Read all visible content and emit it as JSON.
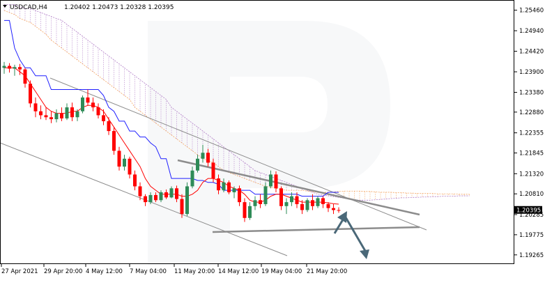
{
  "header": {
    "symbol": "USDCAD,H4",
    "ohlc": "1.20402 1.20473 1.20328 1.20395"
  },
  "colors": {
    "bull": "#2e8b57",
    "bear": "#ff0000",
    "kijun": "#1f1fff",
    "tenkan": "#ff0000",
    "cloud_bear": "#b07cc6",
    "cloud_bull": "#f4a460",
    "trendline": "#8c8c8c",
    "arrow": "#4a6878",
    "price_tag": "#000000"
  },
  "chart_data": {
    "type": "candlestick",
    "title": "",
    "xlabel": "",
    "ylabel": "",
    "ylim": [
      1.1905,
      1.257
    ],
    "grid": false,
    "y_ticks": [
      "1.25460",
      "1.24940",
      "1.24420",
      "1.23900",
      "1.23380",
      "1.22880",
      "1.22355",
      "1.21845",
      "1.21320",
      "1.20810",
      "1.20285",
      "1.19775",
      "1.19265"
    ],
    "x_ticks": [
      "27 Apr 2021",
      "29 Apr 20:00",
      "4 May 12:00",
      "7 May 04:00",
      "11 May 20:00",
      "14 May 12:00",
      "19 May 04:00",
      "21 May 20:00"
    ],
    "current_price": "1.20395",
    "candles": [
      [
        1.24,
        1.2415,
        1.2385,
        1.2405
      ],
      [
        1.2405,
        1.2412,
        1.2388,
        1.2398
      ],
      [
        1.2398,
        1.2408,
        1.238,
        1.2402
      ],
      [
        1.2402,
        1.241,
        1.2382,
        1.2396
      ],
      [
        1.2396,
        1.24,
        1.235,
        1.236
      ],
      [
        1.236,
        1.2368,
        1.23,
        1.231
      ],
      [
        1.231,
        1.2325,
        1.2275,
        1.229
      ],
      [
        1.229,
        1.2305,
        1.227,
        1.228
      ],
      [
        1.228,
        1.23,
        1.2268,
        1.2275
      ],
      [
        1.2275,
        1.229,
        1.226,
        1.227
      ],
      [
        1.227,
        1.2295,
        1.2262,
        1.2285
      ],
      [
        1.2285,
        1.23,
        1.2265,
        1.2272
      ],
      [
        1.2272,
        1.231,
        1.2268,
        1.23
      ],
      [
        1.23,
        1.2312,
        1.2265,
        1.2275
      ],
      [
        1.2275,
        1.2295,
        1.2265,
        1.229
      ],
      [
        1.229,
        1.233,
        1.2285,
        1.2325
      ],
      [
        1.2325,
        1.2345,
        1.2305,
        1.2312
      ],
      [
        1.2312,
        1.2325,
        1.229,
        1.23
      ],
      [
        1.23,
        1.231,
        1.2272,
        1.228
      ],
      [
        1.228,
        1.2295,
        1.2255,
        1.2265
      ],
      [
        1.2265,
        1.2275,
        1.223,
        1.224
      ],
      [
        1.224,
        1.225,
        1.218,
        1.219
      ],
      [
        1.219,
        1.22,
        1.214,
        1.215
      ],
      [
        1.215,
        1.218,
        1.214,
        1.217
      ],
      [
        1.217,
        1.2175,
        1.212,
        1.213
      ],
      [
        1.213,
        1.214,
        1.209,
        1.21
      ],
      [
        1.21,
        1.211,
        1.2065,
        1.2075
      ],
      [
        1.2075,
        1.208,
        1.205,
        1.206
      ],
      [
        1.206,
        1.2085,
        1.2055,
        1.2078
      ],
      [
        1.2078,
        1.2085,
        1.206,
        1.2065
      ],
      [
        1.2065,
        1.209,
        1.206,
        1.2085
      ],
      [
        1.2085,
        1.2092,
        1.2068,
        1.2072
      ],
      [
        1.2072,
        1.21,
        1.207,
        1.2095
      ],
      [
        1.2095,
        1.2102,
        1.206,
        1.2068
      ],
      [
        1.2068,
        1.208,
        1.202,
        1.203
      ],
      [
        1.203,
        1.211,
        1.2025,
        1.21
      ],
      [
        1.21,
        1.215,
        1.2095,
        1.214
      ],
      [
        1.214,
        1.218,
        1.2135,
        1.217
      ],
      [
        1.217,
        1.2205,
        1.216,
        1.2185
      ],
      [
        1.2185,
        1.2195,
        1.215,
        1.216
      ],
      [
        1.216,
        1.217,
        1.211,
        1.212
      ],
      [
        1.212,
        1.213,
        1.208,
        1.209
      ],
      [
        1.209,
        1.212,
        1.2085,
        1.211
      ],
      [
        1.211,
        1.2115,
        1.208,
        1.2085
      ],
      [
        1.2085,
        1.21,
        1.207,
        1.2095
      ],
      [
        1.2095,
        1.2102,
        1.205,
        1.206
      ],
      [
        1.206,
        1.207,
        1.201,
        1.202
      ],
      [
        1.202,
        1.206,
        1.2015,
        1.205
      ],
      [
        1.205,
        1.2075,
        1.204,
        1.2065
      ],
      [
        1.2065,
        1.208,
        1.2045,
        1.2055
      ],
      [
        1.2055,
        1.211,
        1.205,
        1.21
      ],
      [
        1.21,
        1.214,
        1.2095,
        1.213
      ],
      [
        1.213,
        1.2138,
        1.2085,
        1.2095
      ],
      [
        1.2095,
        1.21,
        1.204,
        1.205
      ],
      [
        1.205,
        1.207,
        1.203,
        1.206
      ],
      [
        1.206,
        1.2085,
        1.205,
        1.2075
      ],
      [
        1.2075,
        1.2085,
        1.2045,
        1.2055
      ],
      [
        1.2055,
        1.2065,
        1.203,
        1.204
      ],
      [
        1.204,
        1.207,
        1.2035,
        1.2065
      ],
      [
        1.2065,
        1.208,
        1.204,
        1.205
      ],
      [
        1.205,
        1.2075,
        1.2045,
        1.207
      ],
      [
        1.207,
        1.2075,
        1.2045,
        1.2055
      ],
      [
        1.2055,
        1.206,
        1.2035,
        1.2045
      ],
      [
        1.2045,
        1.2055,
        1.203,
        1.204
      ],
      [
        1.204,
        1.2047,
        1.2033,
        1.20395
      ]
    ],
    "kijun": [
      1.252,
      1.252,
      1.245,
      1.242,
      1.24,
      1.24,
      1.238,
      1.238,
      1.238,
      1.2345,
      1.2345,
      1.2345,
      1.2345,
      1.2345,
      1.2345,
      1.2345,
      1.2345,
      1.2345,
      1.2345,
      1.233,
      1.23,
      1.229,
      1.2265,
      1.2265,
      1.224,
      1.224,
      1.2225,
      1.2225,
      1.221,
      1.22,
      1.217,
      1.217,
      1.212,
      1.212,
      1.212,
      1.212,
      1.212,
      1.2115,
      1.2115,
      1.211,
      1.211,
      1.2105,
      1.209,
      1.209,
      1.209,
      1.209,
      1.209,
      1.209,
      1.208,
      1.208,
      1.208,
      1.208,
      1.208,
      1.208,
      1.208,
      1.208,
      1.208,
      1.2075,
      1.2075,
      1.2075,
      1.2075,
      1.2075,
      1.2085,
      1.2085,
      1.2085
    ],
    "tenkan": [
      1.24,
      1.24,
      1.24,
      1.239,
      1.238,
      1.236,
      1.234,
      1.232,
      1.23,
      1.229,
      1.2285,
      1.2285,
      1.2285,
      1.229,
      1.229,
      1.23,
      1.2305,
      1.2305,
      1.23,
      1.229,
      1.227,
      1.225,
      1.223,
      1.221,
      1.219,
      1.217,
      1.215,
      1.212,
      1.21,
      1.209,
      1.208,
      1.208,
      1.208,
      1.208,
      1.2075,
      1.2075,
      1.208,
      1.209,
      1.211,
      1.212,
      1.212,
      1.2115,
      1.211,
      1.21,
      1.2095,
      1.209,
      1.208,
      1.2065,
      1.206,
      1.206,
      1.2065,
      1.2075,
      1.208,
      1.208,
      1.2075,
      1.207,
      1.2065,
      1.206,
      1.206,
      1.206,
      1.206,
      1.206,
      1.2058,
      1.2056,
      1.2055
    ],
    "cloud_a": [
      1.2545,
      1.254,
      1.2535,
      1.2525,
      1.252,
      1.2515,
      1.2505,
      1.2495,
      1.2485,
      1.247,
      1.246,
      1.245,
      1.244,
      1.243,
      1.242,
      1.241,
      1.24,
      1.239,
      1.238,
      1.237,
      1.236,
      1.235,
      1.234,
      1.233,
      1.232,
      1.23,
      1.229,
      1.228,
      1.227,
      1.226,
      1.225,
      1.224,
      1.223,
      1.222,
      1.221,
      1.22,
      1.219,
      1.218,
      1.217,
      1.2165,
      1.216,
      1.215,
      1.214,
      1.2135,
      1.213,
      1.2125,
      1.212,
      1.2115,
      1.211,
      1.2105,
      1.21,
      1.2098,
      1.2095,
      1.2092,
      1.209,
      1.209,
      1.209,
      1.209,
      1.2088,
      1.2086,
      1.2085,
      1.2085,
      1.2085,
      1.2086,
      1.2087,
      1.2088,
      1.2088,
      1.2088,
      1.2088,
      1.2087,
      1.2087,
      1.2086,
      1.2085,
      1.2085,
      1.2085,
      1.2084,
      1.2084,
      1.2083,
      1.2083,
      1.2082,
      1.2082,
      1.2082,
      1.2082,
      1.2081,
      1.2081,
      1.2081,
      1.2081,
      1.208,
      1.208,
      1.208
    ],
    "cloud_b": [
      1.256,
      1.256,
      1.256,
      1.2555,
      1.255,
      1.255,
      1.2545,
      1.254,
      1.2535,
      1.253,
      1.2525,
      1.252,
      1.251,
      1.25,
      1.249,
      1.248,
      1.247,
      1.246,
      1.245,
      1.244,
      1.243,
      1.242,
      1.241,
      1.24,
      1.239,
      1.238,
      1.237,
      1.236,
      1.235,
      1.234,
      1.233,
      1.232,
      1.23,
      1.229,
      1.228,
      1.227,
      1.226,
      1.225,
      1.224,
      1.223,
      1.222,
      1.221,
      1.22,
      1.219,
      1.218,
      1.217,
      1.216,
      1.215,
      1.214,
      1.2135,
      1.213,
      1.2125,
      1.212,
      1.2115,
      1.211,
      1.2105,
      1.21,
      1.2095,
      1.209,
      1.2085,
      1.208,
      1.2078,
      1.2076,
      1.2074,
      1.2072,
      1.207,
      1.2068,
      1.2066,
      1.2065,
      1.2065,
      1.2065,
      1.2066,
      1.2067,
      1.2068,
      1.2069,
      1.207,
      1.2071,
      1.2071,
      1.2072,
      1.2072,
      1.2073,
      1.2073,
      1.2074,
      1.2074,
      1.2075,
      1.2075,
      1.2075,
      1.2076,
      1.2076,
      1.2076
    ]
  }
}
